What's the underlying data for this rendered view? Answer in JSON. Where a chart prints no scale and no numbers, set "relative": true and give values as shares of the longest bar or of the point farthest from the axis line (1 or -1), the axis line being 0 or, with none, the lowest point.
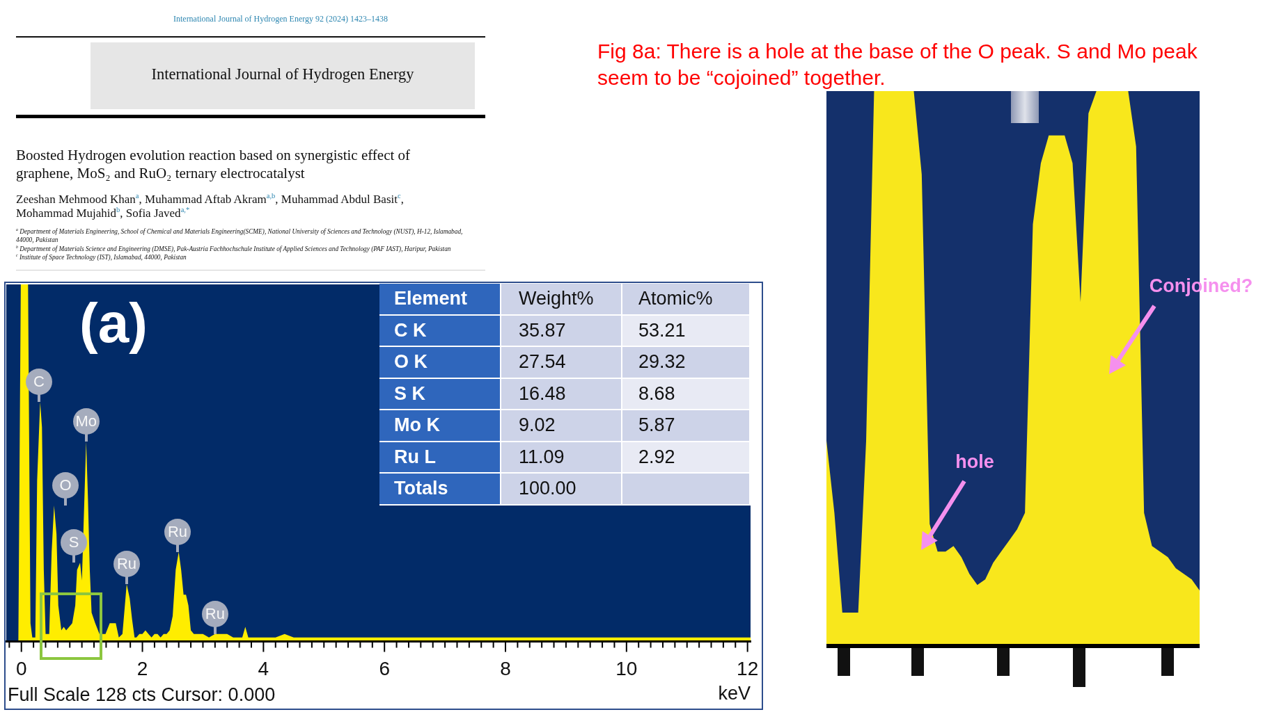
{
  "chart_data": [
    {
      "type": "other",
      "title": "Boosted Hydrogen evolution reaction based on synergistic effect of graphene, MoS₂ and RuO₂ ternary electrocatalyst",
      "subtitle": "Zeeshan Mehmood Khan$^{a}$, Muhammad Aftab Akram$^{a,b}$, Muhammad Abdul Basit$^{c}$, Mohammad Mujahid$^{b}$, Sofia Javed$^{a,*}$",
      "annotations": [
        "International Journal of Hydrogen Energy 92 (2024) 1423–1438",
        "International Journal of Hydrogen Energy",
        "$^{a}$ Department of Materials Engineering, School of Chemical and Materials Engineering(SCME), National University of Sciences and Technology (NUST), H-12, Islamabad, 44000, Pakistan",
        "$^{b}$ Department of Materials Science and Engineering (DMSE), Pak-Austria Fachhochschule Institute of Applied Sciences and Technology (PAF IAST), Haripur, Pakistan",
        "$^{c}$ Institute of Space Technology (IST), Islamabad, 44000, Pakistan"
      ]
    },
    {
      "type": "area",
      "color": "#ffed00",
      "relative": true,
      "xlabel": "keV",
      "xlim": [
        -0.25,
        12.05
      ],
      "xticks": [
        {
          "value": -0.2,
          "label": null
        },
        0,
        {
          "value": 0.2,
          "label": null
        },
        {
          "value": 0.4,
          "label": null
        },
        {
          "value": 0.6,
          "label": null
        },
        {
          "value": 0.8,
          "label": null
        },
        {
          "value": 1,
          "label": null
        },
        {
          "value": 1.2,
          "label": null
        },
        {
          "value": 1.4,
          "label": null
        },
        {
          "value": 1.6,
          "label": null
        },
        {
          "value": 1.8,
          "label": null
        },
        2,
        {
          "value": 2.2,
          "label": null
        },
        {
          "value": 2.4,
          "label": null
        },
        {
          "value": 2.6,
          "label": null
        },
        {
          "value": 2.8,
          "label": null
        },
        {
          "value": 3,
          "label": null
        },
        {
          "value": 3.2,
          "label": null
        },
        {
          "value": 3.4,
          "label": null
        },
        {
          "value": 3.6,
          "label": null
        },
        {
          "value": 3.8,
          "label": null
        },
        4,
        {
          "value": 4.2,
          "label": null
        },
        {
          "value": 4.4,
          "label": null
        },
        {
          "value": 4.6,
          "label": null
        },
        {
          "value": 4.8,
          "label": null
        },
        {
          "value": 5,
          "label": null
        },
        {
          "value": 5.2,
          "label": null
        },
        {
          "value": 5.4,
          "label": null
        },
        {
          "value": 5.6,
          "label": null
        },
        {
          "value": 5.8,
          "label": null
        },
        6,
        {
          "value": 6.2,
          "label": null
        },
        {
          "value": 6.4,
          "label": null
        },
        {
          "value": 6.6,
          "label": null
        },
        {
          "value": 6.8,
          "label": null
        },
        {
          "value": 7,
          "label": null
        },
        {
          "value": 7.2,
          "label": null
        },
        {
          "value": 7.4,
          "label": null
        },
        {
          "value": 7.6,
          "label": null
        },
        {
          "value": 7.8,
          "label": null
        },
        8,
        {
          "value": 8.2,
          "label": null
        },
        {
          "value": 8.4,
          "label": null
        },
        {
          "value": 8.6,
          "label": null
        },
        {
          "value": 8.8,
          "label": null
        },
        {
          "value": 9,
          "label": null
        },
        {
          "value": 9.2,
          "label": null
        },
        {
          "value": 9.4,
          "label": null
        },
        {
          "value": 9.6,
          "label": null
        },
        {
          "value": 9.8,
          "label": null
        },
        10,
        {
          "value": 10.2,
          "label": null
        },
        {
          "value": 10.4,
          "label": null
        },
        {
          "value": 10.6,
          "label": null
        },
        {
          "value": 10.8,
          "label": null
        },
        {
          "value": 11,
          "label": null
        },
        {
          "value": 11.2,
          "label": null
        },
        {
          "value": 11.4,
          "label": null
        },
        {
          "value": 11.6,
          "label": null
        },
        {
          "value": 11.8,
          "label": null
        },
        12
      ],
      "x": [
        -0.25,
        -0.05,
        -0.01,
        0.11,
        0.15,
        0.18,
        0.23,
        0.26,
        0.31,
        0.34,
        0.37,
        0.4,
        0.46,
        0.5,
        0.54,
        0.58,
        0.61,
        0.66,
        0.7,
        0.74,
        0.79,
        0.84,
        0.89,
        0.92,
        0.97,
        1.0,
        1.07,
        1.1,
        1.13,
        1.16,
        1.22,
        1.29,
        1.35,
        1.39,
        1.46,
        1.52,
        1.56,
        1.61,
        1.67,
        1.71,
        1.74,
        1.79,
        1.83,
        1.87,
        1.9,
        1.95,
        2.0,
        2.05,
        2.1,
        2.15,
        2.2,
        2.25,
        2.3,
        2.35,
        2.4,
        2.45,
        2.5,
        2.55,
        2.6,
        2.64,
        2.68,
        2.72,
        2.76,
        2.8,
        2.85,
        2.9,
        2.95,
        3.0,
        3.1,
        3.2,
        3.3,
        3.4,
        3.5,
        3.6,
        3.65,
        3.7,
        3.75,
        3.9,
        4.0,
        4.2,
        4.35,
        4.5,
        4.8,
        5.0,
        5.2,
        5.5,
        6.0,
        6.5,
        7.0,
        7.5,
        8.0,
        8.5,
        9.0,
        9.5,
        10.0,
        10.5,
        11.0,
        11.5,
        12.0,
        12.05
      ],
      "values": [
        0,
        0,
        1,
        1,
        0.05,
        0.01,
        0.01,
        0.45,
        0.67,
        0.6,
        0.2,
        0.02,
        0.02,
        0.25,
        0.38,
        0.3,
        0.1,
        0.03,
        0.04,
        0.03,
        0.04,
        0.05,
        0.1,
        0.2,
        0.22,
        0.17,
        0.56,
        0.4,
        0.2,
        0.08,
        0.05,
        0.02,
        0.02,
        0.02,
        0.05,
        0.05,
        0.05,
        0.01,
        0.02,
        0.1,
        0.16,
        0.12,
        0.06,
        0.01,
        0.01,
        0.02,
        0.02,
        0.03,
        0.02,
        0.01,
        0.02,
        0.02,
        0.01,
        0.02,
        0.02,
        0.03,
        0.07,
        0.2,
        0.25,
        0.2,
        0.13,
        0.13,
        0.1,
        0.03,
        0.02,
        0.02,
        0.02,
        0.02,
        0.01,
        0.02,
        0.02,
        0.02,
        0.01,
        0.01,
        0.01,
        0.04,
        0.01,
        0.01,
        0.01,
        0.01,
        0.02,
        0.01,
        0.01,
        0.01,
        0.01,
        0.01,
        0.01,
        0.01,
        0.01,
        0.01,
        0.01,
        0.01,
        0.01,
        0.01,
        0.01,
        0.01,
        0.01,
        0.01,
        0.01,
        0.01
      ],
      "annotations": [
        "(a)",
        "Full Scale 128 cts Cursor: 0.000",
        {
          "text": "C",
          "x": 0.29,
          "y": 0.67
        },
        {
          "text": "Mo",
          "x": 1.07,
          "y": 0.56
        },
        "O",
        "S",
        {
          "text": "Ru",
          "x": 1.74,
          "y": 0.16
        },
        {
          "text": "Ru",
          "x": 2.58,
          "y": 0.25
        },
        {
          "text": "Ru",
          "x": 3.2,
          "y": 0.02
        }
      ]
    },
    {
      "type": "other",
      "ylabel": "Element",
      "categories": [
        "C K",
        "O K",
        "S K",
        "Mo K",
        "Ru L"
      ],
      "series": [
        {
          "name": "Weight%",
          "color": "#cdd3e8",
          "values": [
            35.87,
            27.54,
            16.48,
            9.02,
            11.09
          ]
        },
        {
          "name": "Atomic%",
          "colors": [
            "#e8eaf4",
            "#cdd3e8",
            "#e8eaf4",
            "#cdd3e8",
            "#e8eaf4"
          ],
          "values": [
            53.21,
            29.32,
            8.68,
            5.87,
            2.92
          ]
        }
      ],
      "data_labels": true,
      "annotations": [
        "Totals",
        "100.00"
      ]
    },
    {
      "type": "area",
      "title": "Fig 8a: There is a hole at the base of the O peak. S and Mo peak seem to be “cojoined” together.",
      "color": "#f8e71c",
      "relative": true,
      "categories": [
        null,
        null,
        null,
        null,
        null,
        null,
        null,
        null,
        null,
        null,
        null,
        null,
        null,
        null,
        null,
        null,
        null,
        null,
        null,
        null,
        null,
        null,
        null,
        null,
        null,
        null,
        null,
        null,
        null,
        null,
        null,
        null,
        null,
        null,
        null,
        null,
        null,
        null,
        null,
        null,
        null,
        null,
        null,
        null,
        null,
        null,
        null,
        null
      ],
      "values": [
        0.37,
        0.24,
        0.06,
        0.06,
        0.06,
        0.37,
        1,
        1,
        1,
        1,
        1,
        1,
        0.85,
        0.22,
        0.17,
        0.17,
        0.18,
        0.16,
        0.13,
        0.11,
        0.12,
        0.15,
        0.17,
        0.19,
        0.21,
        0.24,
        0.76,
        0.87,
        0.92,
        0.92,
        0.92,
        0.87,
        0.62,
        0.96,
        1,
        1,
        1,
        1,
        1,
        0.9,
        0.24,
        0.18,
        0.17,
        0.16,
        0.14,
        0.13,
        0.12,
        0.1
      ],
      "annotations": [
        "hole",
        "Conjoined?"
      ]
    }
  ]
}
